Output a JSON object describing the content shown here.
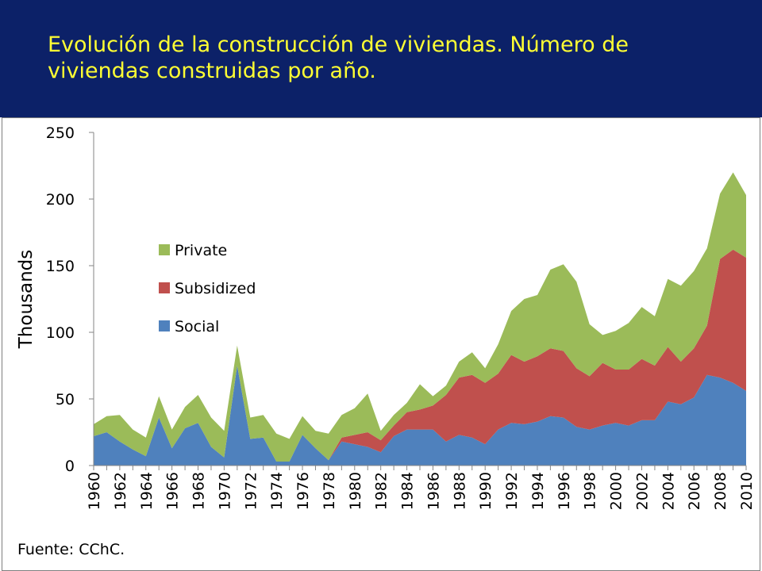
{
  "header": {
    "title": "Evolución de la construcción de viviendas. Número de viviendas construidas por año."
  },
  "colors": {
    "banner": "#0c2168",
    "title_text": "#ffff33",
    "Social": "#4f81bd",
    "Subsidized": "#c0504d",
    "Private": "#9bbb59"
  },
  "source": "Fuente: CChC.",
  "chart_data": {
    "type": "area",
    "stacked": true,
    "title": "",
    "ylabel": "Thousands",
    "xlabel": "",
    "ylim": [
      0,
      250
    ],
    "yticks": [
      0,
      50,
      100,
      150,
      200,
      250
    ],
    "x": [
      1960,
      1961,
      1962,
      1963,
      1964,
      1965,
      1966,
      1967,
      1968,
      1969,
      1970,
      1971,
      1972,
      1973,
      1974,
      1975,
      1976,
      1977,
      1978,
      1979,
      1980,
      1981,
      1982,
      1983,
      1984,
      1985,
      1986,
      1987,
      1988,
      1989,
      1990,
      1991,
      1992,
      1993,
      1994,
      1995,
      1996,
      1997,
      1998,
      1999,
      2000,
      2001,
      2002,
      2003,
      2004,
      2005,
      2006,
      2007,
      2008,
      2009,
      2010
    ],
    "xtick_labels": [
      "1960",
      "1962",
      "1964",
      "1966",
      "1968",
      "1970",
      "1972",
      "1974",
      "1976",
      "1978",
      "1980",
      "1982",
      "1984",
      "1986",
      "1988",
      "1990",
      "1992",
      "1994",
      "1996",
      "1998",
      "2000",
      "2002",
      "2004",
      "2006",
      "2008",
      "2010"
    ],
    "legend_position": "center-left",
    "series": [
      {
        "name": "Social",
        "values": [
          22,
          25,
          18,
          12,
          7,
          36,
          13,
          28,
          32,
          14,
          6,
          75,
          20,
          21,
          3,
          3,
          23,
          13,
          4,
          18,
          16,
          14,
          10,
          22,
          27,
          27,
          27,
          18,
          23,
          21,
          16,
          27,
          32,
          31,
          33,
          37,
          36,
          29,
          27,
          30,
          32,
          30,
          34,
          34,
          48,
          46,
          51,
          68,
          66,
          62,
          56
        ]
      },
      {
        "name": "Subsidized",
        "values": [
          0,
          0,
          0,
          0,
          0,
          0,
          0,
          0,
          0,
          0,
          0,
          0,
          0,
          0,
          0,
          0,
          0,
          0,
          0,
          3,
          7,
          11,
          9,
          8,
          13,
          15,
          18,
          35,
          43,
          47,
          46,
          42,
          51,
          47,
          49,
          51,
          50,
          44,
          40,
          47,
          40,
          42,
          46,
          41,
          41,
          32,
          37,
          37,
          89,
          100,
          100
        ]
      },
      {
        "name": "Private",
        "values": [
          9,
          12,
          20,
          15,
          14,
          16,
          14,
          16,
          21,
          22,
          20,
          15,
          16,
          17,
          21,
          17,
          14,
          13,
          20,
          17,
          20,
          29,
          7,
          8,
          7,
          19,
          7,
          7,
          12,
          17,
          11,
          22,
          33,
          47,
          46,
          59,
          65,
          65,
          39,
          21,
          29,
          35,
          39,
          37,
          51,
          57,
          58,
          58,
          49,
          58,
          47
        ]
      }
    ]
  }
}
